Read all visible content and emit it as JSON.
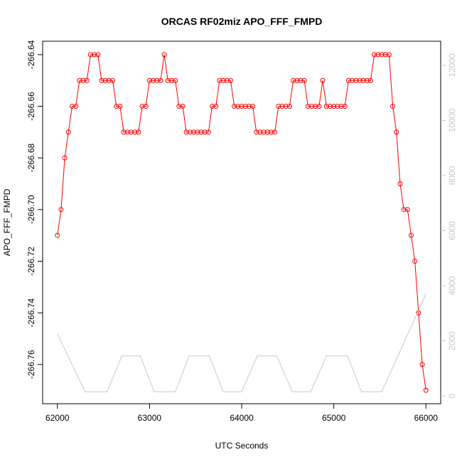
{
  "chart_data": {
    "type": "line",
    "title": "ORCAS RF02miz APO_FFF_FMPD",
    "xlabel": "UTC Seconds",
    "ylabel": "APO_FFF_FMPD",
    "xlim": [
      61840,
      66160
    ],
    "xticks": [
      62000,
      63000,
      64000,
      65000,
      66000
    ],
    "ylim": [
      -266.7752,
      -266.6348
    ],
    "yticks": [
      -266.64,
      -266.66,
      -266.68,
      {
        "value": -266.7,
        "label": "-266.70"
      },
      -266.72,
      -266.74,
      -266.76
    ],
    "y2lim": [
      -284,
      12877
    ],
    "y2ticks": [
      0,
      2000,
      4000,
      6000,
      8000,
      10000,
      12000
    ],
    "series": [
      {
        "color": "#ff0000",
        "markers": true,
        "x": [
          62000,
          62040,
          62080,
          62120,
          62160,
          62200,
          62240,
          62280,
          62320,
          62360,
          62400,
          62440,
          62480,
          62520,
          62560,
          62600,
          62640,
          62680,
          62720,
          62760,
          62800,
          62840,
          62880,
          62920,
          62960,
          63000,
          63040,
          63080,
          63120,
          63160,
          63200,
          63240,
          63280,
          63320,
          63360,
          63400,
          63440,
          63480,
          63520,
          63560,
          63600,
          63640,
          63680,
          63720,
          63760,
          63800,
          63840,
          63880,
          63920,
          63960,
          64000,
          64040,
          64080,
          64120,
          64160,
          64200,
          64240,
          64280,
          64320,
          64360,
          64400,
          64440,
          64480,
          64520,
          64560,
          64600,
          64640,
          64680,
          64720,
          64760,
          64800,
          64840,
          64880,
          64920,
          64960,
          65000,
          65040,
          65080,
          65120,
          65160,
          65200,
          65240,
          65280,
          65320,
          65360,
          65400,
          65440,
          65480,
          65520,
          65560,
          65600,
          65640,
          65680,
          65720,
          65760,
          65800,
          65840,
          65880,
          65920,
          65960,
          66000
        ],
        "values": [
          -266.71,
          -266.7,
          -266.68,
          -266.67,
          -266.66,
          -266.66,
          -266.65,
          -266.65,
          -266.65,
          -266.64,
          -266.64,
          -266.64,
          -266.65,
          -266.65,
          -266.65,
          -266.65,
          -266.66,
          -266.66,
          -266.67,
          -266.67,
          -266.67,
          -266.67,
          -266.67,
          -266.66,
          -266.66,
          -266.65,
          -266.65,
          -266.65,
          -266.65,
          -266.64,
          -266.65,
          -266.65,
          -266.65,
          -266.66,
          -266.66,
          -266.67,
          -266.67,
          -266.67,
          -266.67,
          -266.67,
          -266.67,
          -266.67,
          -266.66,
          -266.66,
          -266.65,
          -266.65,
          -266.65,
          -266.65,
          -266.66,
          -266.66,
          -266.66,
          -266.66,
          -266.66,
          -266.66,
          -266.67,
          -266.67,
          -266.67,
          -266.67,
          -266.67,
          -266.67,
          -266.66,
          -266.66,
          -266.66,
          -266.66,
          -266.65,
          -266.65,
          -266.65,
          -266.65,
          -266.66,
          -266.66,
          -266.66,
          -266.66,
          -266.65,
          -266.66,
          -266.66,
          -266.66,
          -266.66,
          -266.66,
          -266.66,
          -266.65,
          -266.65,
          -266.65,
          -266.65,
          -266.65,
          -266.65,
          -266.65,
          -266.64,
          -266.64,
          -266.64,
          -266.64,
          -266.64,
          -266.66,
          -266.67,
          -266.69,
          -266.7,
          -266.7,
          -266.71,
          -266.72,
          -266.74,
          -266.76,
          -266.77
        ]
      },
      {
        "color": "#c8c8c8",
        "axis": "y2",
        "markers": false,
        "x": [
          62000,
          62280,
          62300,
          62540,
          62700,
          62900,
          63050,
          63280,
          63430,
          63650,
          63800,
          64000,
          64170,
          64380,
          64550,
          64750,
          64920,
          65150,
          65300,
          65520,
          66000
        ],
        "values": [
          2250,
          300,
          150,
          150,
          1450,
          1450,
          150,
          150,
          1450,
          1450,
          150,
          150,
          1450,
          1450,
          150,
          150,
          1450,
          1450,
          150,
          150,
          3700
        ]
      }
    ]
  }
}
